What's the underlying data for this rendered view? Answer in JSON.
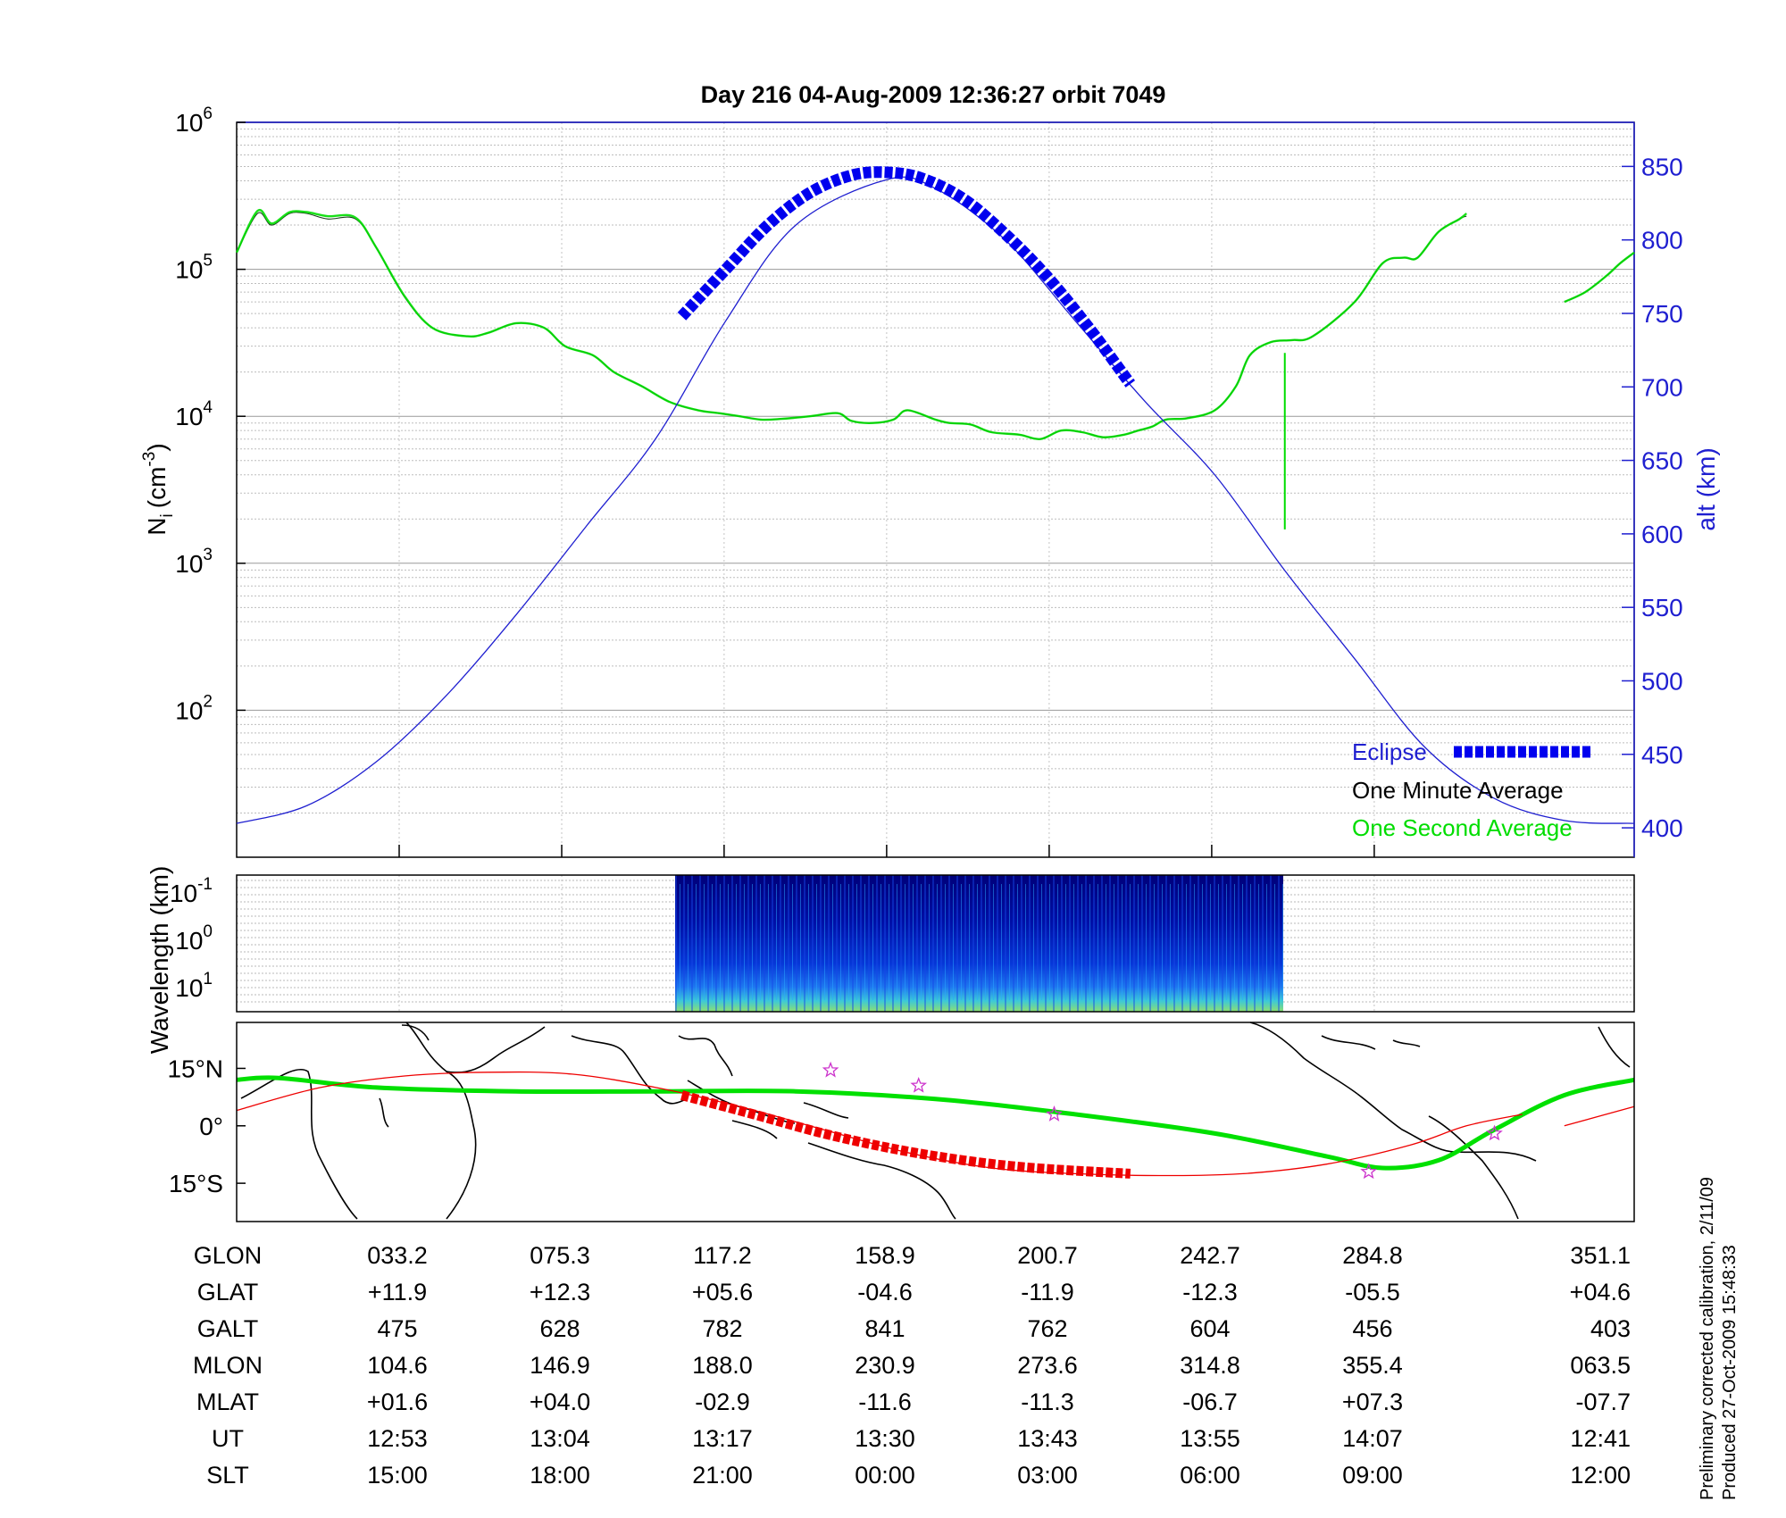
{
  "title": "Day 216  04-Aug-2009 12:36:27   orbit 7049",
  "side_note": [
    "Preliminary corrected calibration, 2/11/09",
    "Produced 27-Oct-2009 15:48:33"
  ],
  "colors": {
    "eclipse": "#0000ee",
    "minute": "#000000",
    "second": "#00dd00",
    "alt": "#1f1fd0",
    "track_red": "#ee0000",
    "track_green": "#00e000",
    "axis": "#1f1fd0"
  },
  "chart_data": [
    {
      "type": "line",
      "panel": "density",
      "ylabel": "N",
      "ylabel_sub": "i",
      "ylabel_unit": "(cm",
      "ylabel_exp": "-3",
      "y_scale": "log",
      "ylim": [
        10,
        1000000
      ],
      "yticks": [
        {
          "base": "10",
          "exp": "2",
          "v": 100
        },
        {
          "base": "10",
          "exp": "3",
          "v": 1000
        },
        {
          "base": "10",
          "exp": "4",
          "v": 10000
        },
        {
          "base": "10",
          "exp": "5",
          "v": 100000
        },
        {
          "base": "10",
          "exp": "6",
          "v": 1000000
        }
      ],
      "xlim": [
        0,
        1
      ],
      "x_ticks": [
        0.1163,
        0.2326,
        0.3488,
        0.4651,
        0.5814,
        0.6977,
        0.814
      ],
      "y2label": "alt (km)",
      "y2lim": [
        380,
        880
      ],
      "y2ticks": [
        400,
        450,
        500,
        550,
        600,
        650,
        700,
        750,
        800,
        850
      ],
      "grid": true,
      "legend_position": "bottom-right",
      "legend": [
        "Eclipse",
        "One Minute Average",
        "One Second Average"
      ],
      "series": [
        {
          "name": "One Minute Average",
          "axis": "left",
          "segments": [
            {
              "x": [
                0,
                0.015,
                0.025,
                0.038,
                0.05,
                0.065,
                0.085,
                0.1,
                0.12,
                0.14,
                0.165,
                0.18,
                0.2,
                0.22,
                0.235,
                0.255,
                0.27,
                0.29,
                0.31,
                0.33,
                0.345,
                0.36,
                0.375,
                0.39,
                0.41,
                0.43,
                0.44,
                0.455,
                0.47,
                0.48,
                0.5,
                0.51,
                0.525,
                0.54,
                0.56,
                0.575,
                0.59,
                0.605,
                0.62,
                0.635,
                0.645,
                0.655,
                0.665,
                0.68,
                0.7,
                0.715,
                0.725,
                0.74,
                0.755,
                0.77,
                0.8,
                0.82,
                0.835,
                0.845,
                0.86,
                0.875,
                0.88
              ],
              "y": [
                130000,
                240000,
                200000,
                240000,
                240000,
                220000,
                220000,
                140000,
                65000,
                40000,
                35000,
                37000,
                43000,
                40000,
                30000,
                26000,
                20000,
                16000,
                12500,
                11000,
                10500,
                10000,
                9500,
                9600,
                10000,
                10500,
                9300,
                9000,
                9500,
                11000,
                9500,
                9000,
                8800,
                7800,
                7500,
                7000,
                8000,
                7800,
                7200,
                7500,
                8000,
                8500,
                9500,
                9700,
                11000,
                16000,
                26000,
                32000,
                33000,
                35000,
                60000,
                110000,
                120000,
                120000,
                180000,
                220000,
                230000
              ]
            },
            {
              "x": [
                0.95,
                0.965,
                0.98,
                0.99,
                1.0
              ],
              "y": [
                60000,
                70000,
                90000,
                110000,
                130000
              ]
            }
          ]
        },
        {
          "name": "One Second Average",
          "axis": "left",
          "segments": [
            {
              "x": [
                0,
                0.015,
                0.025,
                0.038,
                0.05,
                0.065,
                0.085,
                0.1,
                0.12,
                0.14,
                0.165,
                0.18,
                0.2,
                0.22,
                0.235,
                0.255,
                0.27,
                0.29,
                0.31,
                0.33,
                0.345,
                0.36,
                0.375,
                0.39,
                0.41,
                0.43,
                0.44,
                0.455,
                0.47,
                0.48,
                0.5,
                0.51,
                0.525,
                0.54,
                0.56,
                0.575,
                0.59,
                0.605,
                0.62,
                0.635,
                0.645,
                0.655,
                0.665,
                0.68,
                0.7,
                0.715,
                0.725,
                0.74,
                0.755,
                0.77,
                0.8,
                0.82,
                0.835,
                0.845,
                0.86,
                0.875,
                0.88
              ],
              "y": [
                130000,
                250000,
                205000,
                245000,
                245000,
                230000,
                225000,
                140000,
                66000,
                40000,
                35000,
                37000,
                43000,
                40000,
                30000,
                26000,
                20000,
                16000,
                12500,
                11000,
                10500,
                10000,
                9500,
                9600,
                10000,
                10500,
                9300,
                9000,
                9500,
                11000,
                9500,
                9000,
                8800,
                7800,
                7500,
                7000,
                8000,
                7800,
                7200,
                7500,
                8000,
                8500,
                9500,
                9700,
                11000,
                16000,
                26000,
                32000,
                33000,
                35000,
                60000,
                110000,
                120000,
                120000,
                180000,
                220000,
                240000
              ]
            },
            {
              "x": [
                0.75,
                0.75
              ],
              "y": [
                27000,
                1700
              ]
            },
            {
              "x": [
                0.95,
                0.965,
                0.98,
                0.99,
                1.0
              ],
              "y": [
                60000,
                70000,
                90000,
                110000,
                130000
              ]
            }
          ]
        },
        {
          "name": "alt",
          "axis": "right",
          "x": [
            0,
            0.05,
            0.1,
            0.15,
            0.2,
            0.25,
            0.3,
            0.35,
            0.4,
            0.4651,
            0.5,
            0.55,
            0.6,
            0.65,
            0.7,
            0.75,
            0.8,
            0.85,
            0.9,
            0.95,
            1.0
          ],
          "y": [
            403,
            415,
            445,
            490,
            545,
            605,
            665,
            745,
            810,
            841,
            835,
            800,
            745,
            690,
            640,
            575,
            515,
            455,
            420,
            405,
            403
          ]
        },
        {
          "name": "Eclipse",
          "axis": "right",
          "x": [
            0.3185,
            0.35,
            0.38,
            0.41,
            0.44,
            0.4651,
            0.49,
            0.52,
            0.55,
            0.58,
            0.61,
            0.6395
          ],
          "y": [
            748,
            780,
            810,
            832,
            844,
            846,
            842,
            828,
            804,
            775,
            740,
            702
          ]
        }
      ]
    },
    {
      "type": "heatmap",
      "panel": "spectrogram",
      "ylabel": "Wavelength (km)",
      "yticks": [
        {
          "base": "10",
          "exp": "-1"
        },
        {
          "base": "10",
          "exp": "0"
        },
        {
          "base": "10",
          "exp": "1"
        }
      ],
      "x_extent": [
        0.3185,
        0.7535
      ]
    },
    {
      "type": "line",
      "panel": "map",
      "yticks": [
        "15°N",
        "0°",
        "15°S"
      ],
      "ylim": [
        -25,
        27
      ],
      "series": [
        {
          "name": "green track",
          "x": [
            0,
            0.03,
            0.1,
            0.2,
            0.3,
            0.4,
            0.5,
            0.6,
            0.7,
            0.78,
            0.82,
            0.86,
            0.9,
            0.95,
            1.0
          ],
          "y": [
            12,
            12.5,
            10,
            9,
            9,
            9,
            7,
            3,
            -2,
            -8,
            -11,
            -9,
            -1,
            8,
            12
          ]
        },
        {
          "name": "red track",
          "x": [
            0,
            0.06,
            0.12,
            0.18,
            0.24,
            0.3,
            0.36,
            0.42,
            0.48,
            0.54,
            0.6,
            0.66,
            0.72,
            0.78,
            0.84,
            0.88,
            0.92
          ],
          "y": [
            4,
            10,
            13,
            14,
            13.5,
            10,
            5,
            -1,
            -7,
            -11,
            -12.5,
            -13,
            -12.5,
            -10,
            -5,
            0,
            3
          ]
        },
        {
          "name": "red track end",
          "x": [
            0.95,
            1.0
          ],
          "y": [
            0,
            5
          ]
        },
        {
          "name": "footprint",
          "x": [
            0.3185,
            0.37,
            0.42,
            0.47,
            0.52,
            0.57,
            0.6395
          ],
          "y": [
            8,
            3,
            -2,
            -6,
            -9,
            -11,
            -12.5
          ]
        }
      ],
      "stars": [
        {
          "x": 0.425,
          "y": 14.5
        },
        {
          "x": 0.488,
          "y": 10.5
        },
        {
          "x": 0.585,
          "y": 3
        },
        {
          "x": 0.81,
          "y": -12
        },
        {
          "x": 0.9,
          "y": -2
        }
      ]
    }
  ],
  "table": {
    "rows": [
      {
        "label": "GLON",
        "values": [
          "033.2",
          "075.3",
          "117.2",
          "158.9",
          "200.7",
          "242.7",
          "284.8",
          "351.1"
        ]
      },
      {
        "label": "GLAT",
        "values": [
          "+11.9",
          "+12.3",
          "+05.6",
          "-04.6",
          "-11.9",
          "-12.3",
          "-05.5",
          "+04.6"
        ]
      },
      {
        "label": "GALT",
        "values": [
          "475",
          "628",
          "782",
          "841",
          "762",
          "604",
          "456",
          "403"
        ]
      },
      {
        "label": "MLON",
        "values": [
          "104.6",
          "146.9",
          "188.0",
          "230.9",
          "273.6",
          "314.8",
          "355.4",
          "063.5"
        ]
      },
      {
        "label": "MLAT",
        "values": [
          "+01.6",
          "+04.0",
          "-02.9",
          "-11.6",
          "-11.3",
          "-06.7",
          "+07.3",
          "-07.7"
        ]
      },
      {
        "label": "UT",
        "values": [
          "12:53",
          "13:04",
          "13:17",
          "13:30",
          "13:43",
          "13:55",
          "14:07",
          "12:41"
        ]
      },
      {
        "label": "SLT",
        "values": [
          "15:00",
          "18:00",
          "21:00",
          "00:00",
          "03:00",
          "06:00",
          "09:00",
          "12:00"
        ]
      }
    ]
  }
}
